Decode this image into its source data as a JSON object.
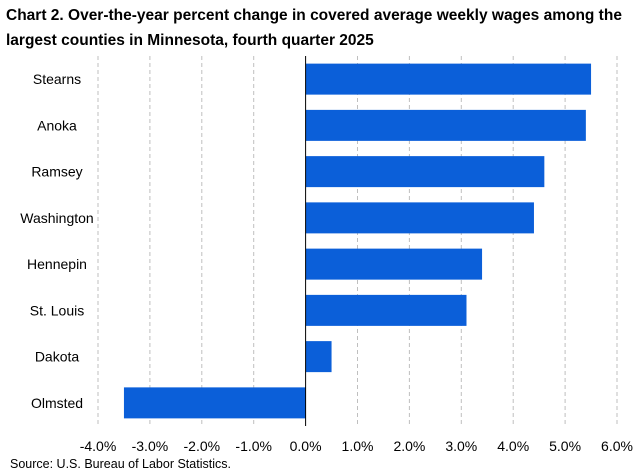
{
  "chart_data": {
    "type": "bar",
    "orientation": "horizontal",
    "title": "Chart 2. Over-the-year percent change in covered average weekly wages among the largest counties in Minnesota, fourth quarter 2025",
    "categories": [
      "Stearns",
      "Anoka",
      "Ramsey",
      "Washington",
      "Hennepin",
      "St. Louis",
      "Dakota",
      "Olmsted"
    ],
    "values": [
      5.5,
      5.4,
      4.6,
      4.4,
      3.4,
      3.1,
      0.5,
      -3.5
    ],
    "xlim": [
      -4.0,
      6.0
    ],
    "xticks": [
      -4.0,
      -3.0,
      -2.0,
      -1.0,
      0.0,
      1.0,
      2.0,
      3.0,
      4.0,
      5.0,
      6.0
    ],
    "tick_labels": [
      "-4.0%",
      "-3.0%",
      "-2.0%",
      "-1.0%",
      "0.0%",
      "1.0%",
      "2.0%",
      "3.0%",
      "4.0%",
      "5.0%",
      "6.0%"
    ],
    "bar_color": "#0b5fd9",
    "grid": "vertical dashed",
    "legend": "none",
    "source": "Source: U.S. Bureau of Labor Statistics."
  }
}
